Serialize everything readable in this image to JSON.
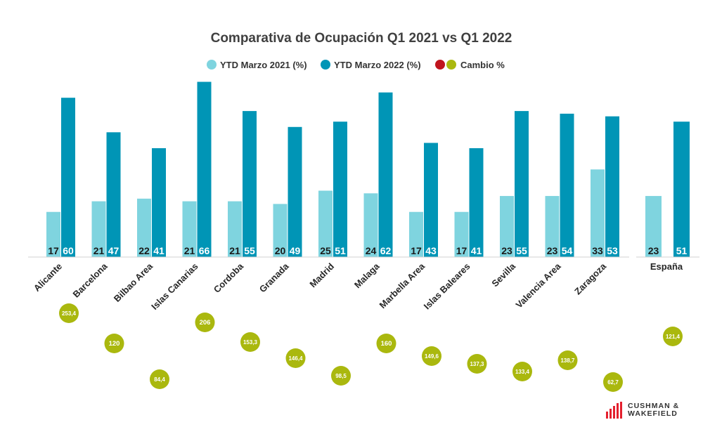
{
  "colors": {
    "series_2021": "#7fd4df",
    "series_2022": "#0095b6",
    "cambio": "#aab80e",
    "cambio_negative": "#c0151e",
    "axis": "#d0d0d0",
    "logo": "#e4202e"
  },
  "chart_data": {
    "type": "bar",
    "title": "Comparativa de Ocupación Q1 2021 vs Q1 2022",
    "legend": {
      "placement": "top-center",
      "entries": [
        "YTD Marzo 2021 (%)",
        "YTD Marzo 2022 (%)",
        "Cambio %"
      ]
    },
    "categories": [
      "Alicante",
      "Barcelona",
      "Bilbao Area",
      "Islas Canarias",
      "Cordoba",
      "Granada",
      "Madrid",
      "Malaga",
      "Marbella Area",
      "Islas Baleares",
      "Sevilla",
      "Valencia Area",
      "Zaragoza"
    ],
    "series": [
      {
        "name": "YTD Marzo 2021 (%)",
        "values": [
          17,
          21,
          22,
          21,
          21,
          20,
          25,
          24,
          17,
          17,
          23,
          23,
          33
        ]
      },
      {
        "name": "YTD Marzo 2022 (%)",
        "values": [
          60,
          47,
          41,
          66,
          55,
          49,
          51,
          62,
          43,
          41,
          55,
          54,
          53
        ]
      }
    ],
    "cambio": {
      "name": "Cambio %",
      "values": [
        "253,4",
        "120",
        "84,4",
        "206",
        "153,3",
        "146,4",
        "98,5",
        "160",
        "149,6",
        "137,3",
        "133,4",
        "138,7",
        "62,7"
      ]
    },
    "national": {
      "category": "España",
      "values": [
        23,
        51
      ],
      "cambio": "121,4"
    },
    "grid": false
  },
  "logo": {
    "line1": "CUSHMAN &",
    "line2": "WAKEFIELD"
  }
}
